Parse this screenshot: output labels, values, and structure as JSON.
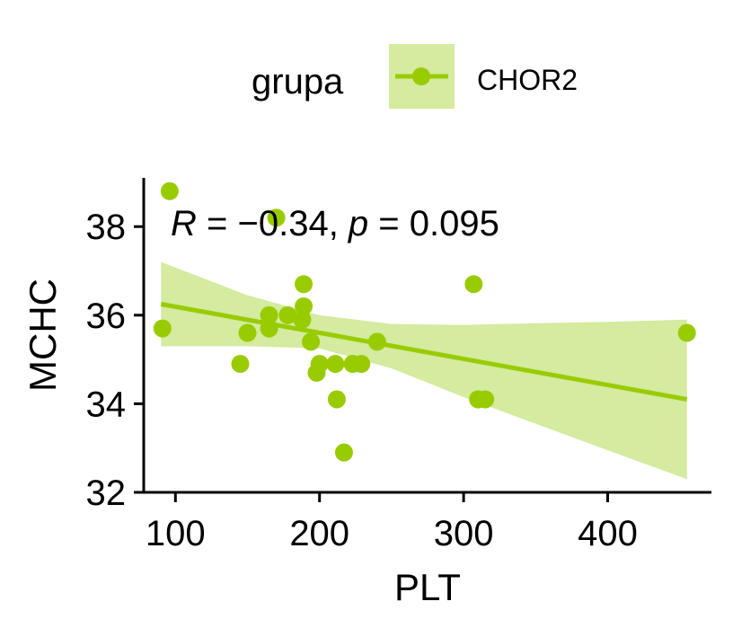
{
  "chart_data": {
    "type": "scatter",
    "xlabel": "PLT",
    "ylabel": "MCHC",
    "xlim": [
      78,
      472
    ],
    "ylim": [
      32,
      39.1
    ],
    "x_ticks": [
      100,
      200,
      300,
      400
    ],
    "y_ticks": [
      32,
      34,
      36,
      38
    ],
    "grid": false,
    "legend": {
      "title": "grupa",
      "position": "top",
      "entries": [
        "CHOR2"
      ]
    },
    "colors": {
      "series": "#99cc00",
      "band": "#d4eba0"
    },
    "annotation": {
      "r_symbol": "R",
      "r_text": " = −0.34, ",
      "p_symbol": "p",
      "p_text": " = 0.095"
    },
    "series": [
      {
        "name": "CHOR2",
        "points": [
          {
            "x": 91,
            "y": 35.7
          },
          {
            "x": 96,
            "y": 38.8
          },
          {
            "x": 145,
            "y": 34.9
          },
          {
            "x": 150,
            "y": 35.6
          },
          {
            "x": 165,
            "y": 35.7
          },
          {
            "x": 165,
            "y": 36.0
          },
          {
            "x": 170,
            "y": 38.2
          },
          {
            "x": 178,
            "y": 36.0
          },
          {
            "x": 188,
            "y": 35.9
          },
          {
            "x": 189,
            "y": 36.2
          },
          {
            "x": 189,
            "y": 36.7
          },
          {
            "x": 194,
            "y": 35.4
          },
          {
            "x": 198,
            "y": 34.7
          },
          {
            "x": 200,
            "y": 34.9
          },
          {
            "x": 211,
            "y": 34.9
          },
          {
            "x": 212,
            "y": 34.1
          },
          {
            "x": 217,
            "y": 32.9
          },
          {
            "x": 223,
            "y": 34.9
          },
          {
            "x": 229,
            "y": 34.9
          },
          {
            "x": 240,
            "y": 35.4
          },
          {
            "x": 307,
            "y": 36.7
          },
          {
            "x": 310,
            "y": 34.1
          },
          {
            "x": 315,
            "y": 34.1
          },
          {
            "x": 455,
            "y": 35.6
          }
        ]
      }
    ],
    "regression": {
      "x": [
        90,
        455
      ],
      "y": [
        36.25,
        34.1
      ],
      "ci_upper": [
        [
          90,
          37.2
        ],
        [
          150,
          36.45
        ],
        [
          200,
          36.0
        ],
        [
          250,
          35.8
        ],
        [
          300,
          35.78
        ],
        [
          350,
          35.82
        ],
        [
          400,
          35.85
        ],
        [
          455,
          35.9
        ]
      ],
      "ci_lower": [
        [
          90,
          35.3
        ],
        [
          150,
          35.3
        ],
        [
          200,
          35.25
        ],
        [
          250,
          34.8
        ],
        [
          300,
          34.15
        ],
        [
          350,
          33.55
        ],
        [
          400,
          32.95
        ],
        [
          455,
          32.3
        ]
      ]
    }
  }
}
